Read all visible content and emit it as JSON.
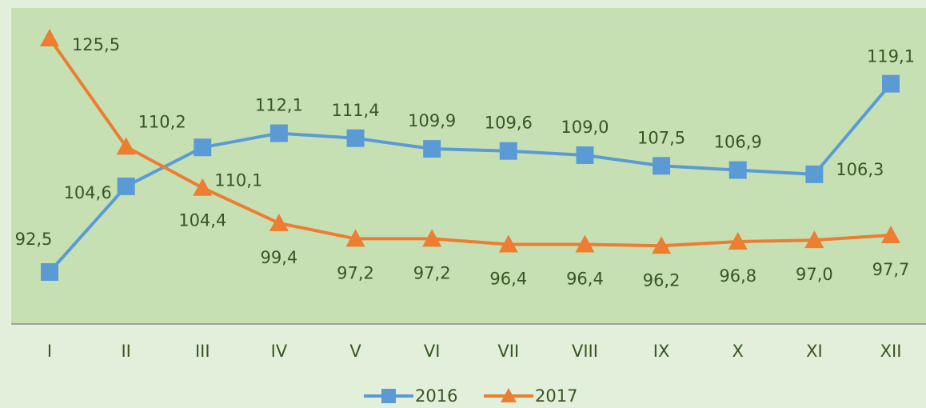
{
  "chart_data": {
    "type": "line",
    "categories": [
      "I",
      "II",
      "III",
      "IV",
      "V",
      "VI",
      "VII",
      "VIII",
      "IX",
      "X",
      "XI",
      "XII"
    ],
    "series": [
      {
        "name": "2016",
        "color": "#5b9bd5",
        "marker": "square",
        "values": [
          92.5,
          104.6,
          110.1,
          112.1,
          111.4,
          109.9,
          109.6,
          109.0,
          107.5,
          106.9,
          106.3,
          119.1
        ],
        "value_labels": [
          "92,5",
          "104,6",
          "110,1",
          "112,1",
          "111,4",
          "109,9",
          "109,6",
          "109,0",
          "107,5",
          "106,9",
          "106,3",
          "119,1"
        ]
      },
      {
        "name": "2017",
        "color": "#ed7d31",
        "marker": "triangle",
        "values": [
          125.5,
          110.2,
          104.4,
          99.4,
          97.2,
          97.2,
          96.4,
          96.4,
          96.2,
          96.8,
          97.0,
          97.7
        ],
        "value_labels": [
          "125,5",
          "110,2",
          "104,4",
          "99,4",
          "97,2",
          "97,2",
          "96,4",
          "96,4",
          "96,2",
          "96,8",
          "97,0",
          "97,7"
        ]
      }
    ],
    "legend": "bottom"
  }
}
